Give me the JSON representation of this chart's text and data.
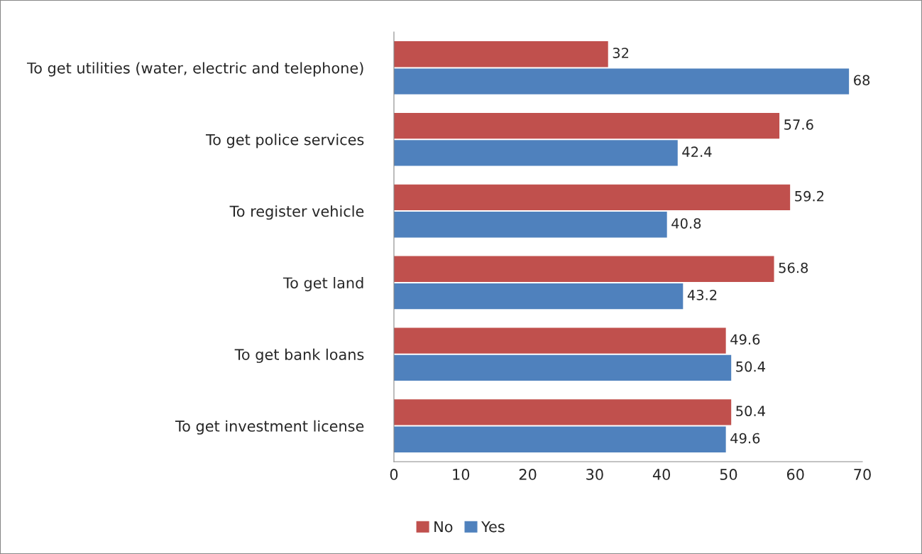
{
  "chart_data": {
    "type": "bar",
    "orientation": "horizontal",
    "categories": [
      "To get utilities (water, electric and telephone)",
      "To get police services",
      "To register vehicle",
      "To get land",
      "To get bank loans",
      "To get investment license"
    ],
    "series": [
      {
        "name": "No",
        "color": "#c0504d",
        "values": [
          32,
          57.6,
          59.2,
          56.8,
          49.6,
          50.4
        ]
      },
      {
        "name": "Yes",
        "color": "#4f81bd",
        "values": [
          68,
          42.4,
          40.8,
          43.2,
          50.4,
          49.6
        ]
      }
    ],
    "xlim": [
      0,
      70
    ],
    "xticks": [
      0,
      10,
      20,
      30,
      40,
      50,
      60,
      70
    ],
    "data_labels": true,
    "grid": false,
    "legend": "bottom"
  }
}
